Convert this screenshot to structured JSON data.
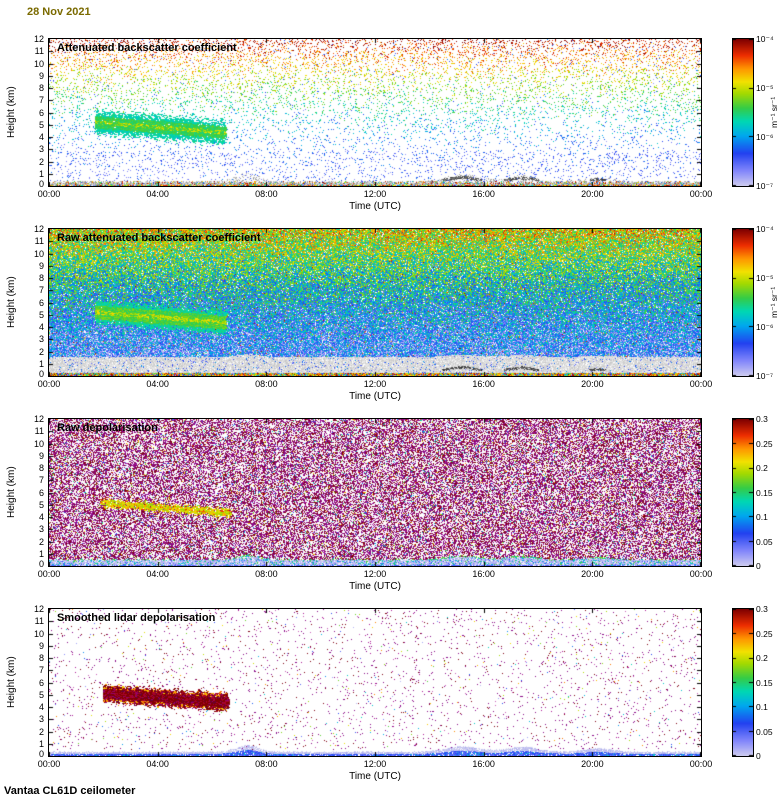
{
  "page": {
    "date_label": "28 Nov 2021",
    "footer_label": "Vantaa CL61D ceilometer",
    "colors": {
      "date_text": "#7a6a00",
      "axis_text": "#000000",
      "background": "#ffffff"
    }
  },
  "colormap": [
    [
      0.0,
      "#cccaf0"
    ],
    [
      0.1,
      "#8286fb"
    ],
    [
      0.22,
      "#2241f0"
    ],
    [
      0.34,
      "#00a8ee"
    ],
    [
      0.44,
      "#00d8b2"
    ],
    [
      0.53,
      "#35cc46"
    ],
    [
      0.63,
      "#a4da00"
    ],
    [
      0.71,
      "#f2e200"
    ],
    [
      0.8,
      "#ff9500"
    ],
    [
      0.89,
      "#ed2e00"
    ],
    [
      1.0,
      "#7f0000"
    ]
  ],
  "chart_data": {
    "type": "heatmap",
    "x_axis": {
      "label": "Time (UTC)",
      "tick_hours": [
        0,
        4,
        8,
        12,
        16,
        20,
        24
      ],
      "tick_labels": [
        "00:00",
        "04:00",
        "08:00",
        "12:00",
        "16:00",
        "20:00",
        "00:00"
      ],
      "range_hours": [
        0,
        24
      ]
    },
    "y_axis": {
      "label": "Height (km)",
      "ticks": [
        12,
        11,
        10,
        9,
        8,
        7,
        6,
        5,
        4,
        3,
        2,
        1,
        0
      ],
      "range_km": [
        0,
        12
      ]
    },
    "boundary_humps": [
      {
        "center_h": 7.3,
        "width_h": 0.55,
        "amp_km": 0.62
      },
      {
        "center_h": 15.2,
        "width_h": 0.85,
        "amp_km": 0.5
      },
      {
        "center_h": 17.4,
        "width_h": 0.8,
        "amp_km": 0.45
      },
      {
        "center_h": 20.2,
        "width_h": 0.7,
        "amp_km": 0.3
      }
    ],
    "panels": [
      {
        "title": "Attenuated backscatter coefficient",
        "style": "sparse_backscatter",
        "colorbar": {
          "scale": "log",
          "tick_labels": [
            "10⁻⁴",
            "10⁻⁵",
            "10⁻⁶",
            "10⁻⁷"
          ],
          "unit": "m⁻¹ sr⁻¹",
          "range": [
            "1e-7",
            "1e-4"
          ]
        },
        "cloud_layer": {
          "t0": 1.7,
          "t1": 6.5,
          "h0": 5.2,
          "h1": 4.35,
          "sigma_km": 0.42,
          "appearance": "green layer with yellow core"
        },
        "surface_band_top_km": 0.4,
        "render": {
          "seed": 11,
          "ambient_dots": 10000
        }
      },
      {
        "title": "Raw attenuated backscatter coefficient",
        "style": "dense_backscatter",
        "colorbar": {
          "scale": "log",
          "tick_labels": [
            "10⁻⁴",
            "10⁻⁵",
            "10⁻⁶",
            "10⁻⁷"
          ],
          "unit": "m⁻¹ sr⁻¹",
          "range": [
            "1e-7",
            "1e-4"
          ]
        },
        "cloud_layer": {
          "t0": 1.7,
          "t1": 6.5,
          "h0": 5.2,
          "h1": 4.35,
          "sigma_km": 0.4,
          "appearance": "green layer with yellow core"
        },
        "gray_band_top_km": 1.55,
        "surface_band_top_km": 0.28,
        "render": {
          "seed": 22,
          "fill_prob": 0.94
        }
      },
      {
        "title": "Raw depolarisation",
        "style": "dense_depol",
        "colorbar": {
          "scale": "linear",
          "tick_labels": [
            "0.3",
            "0.25",
            "0.2",
            "0.15",
            "0.1",
            "0.05",
            "0"
          ],
          "unit": "",
          "range": [
            0,
            0.3
          ]
        },
        "cloud_layer": {
          "t0": 1.9,
          "t1": 6.7,
          "h0": 5.15,
          "h1": 4.3,
          "sigma_km": 0.17,
          "appearance": "orange streak"
        },
        "surface_band_top_km": 0.5,
        "render": {
          "seed": 33,
          "fill_prob": 0.54
        }
      },
      {
        "title": "Smoothed lidar depolarisation",
        "style": "sparse_depol",
        "colorbar": {
          "scale": "linear",
          "tick_labels": [
            "0.3",
            "0.25",
            "0.2",
            "0.15",
            "0.1",
            "0.05",
            "0"
          ],
          "unit": "",
          "range": [
            0,
            0.3
          ]
        },
        "cloud_layer": {
          "t0": 2.0,
          "t1": 6.6,
          "h0": 5.1,
          "h1": 4.35,
          "sigma_km": 0.3,
          "appearance": "dark red blob"
        },
        "surface_band_top_km": 0.3,
        "render": {
          "seed": 44,
          "ambient_dots": 3200
        }
      }
    ]
  }
}
